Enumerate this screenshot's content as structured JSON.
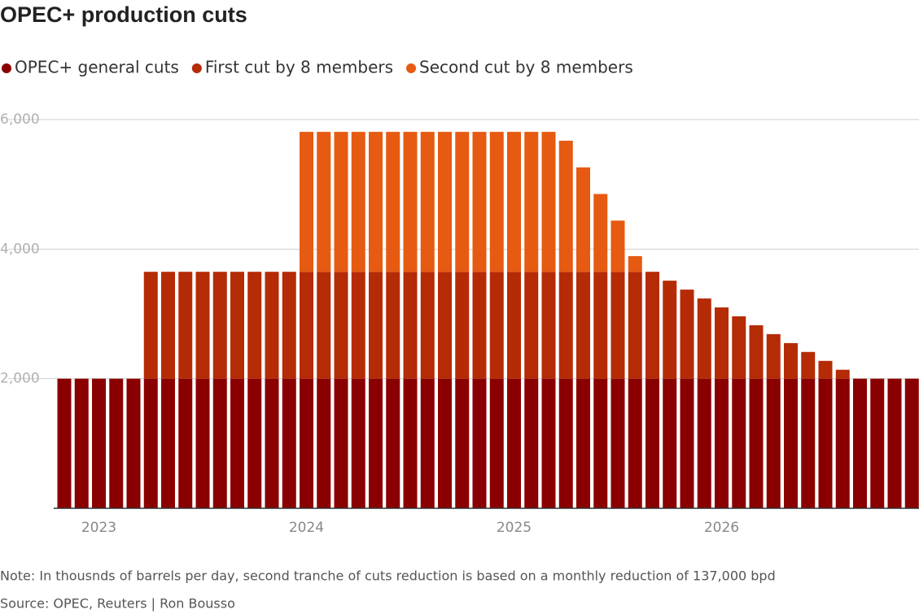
{
  "chart_data": {
    "type": "stacked_bar",
    "title": "OPEC+ production cuts",
    "categories": [
      null,
      null,
      "2023",
      null,
      null,
      null,
      null,
      null,
      null,
      null,
      null,
      null,
      null,
      null,
      "2024",
      null,
      null,
      null,
      null,
      null,
      null,
      null,
      null,
      null,
      null,
      null,
      "2025",
      null,
      null,
      null,
      null,
      null,
      null,
      null,
      null,
      null,
      null,
      null,
      "2026",
      null,
      null,
      null,
      null,
      null,
      null,
      null,
      null,
      null,
      null,
      null
    ],
    "series": [
      {
        "name": "OPEC+ general cuts",
        "color": "#8a0000",
        "values": [
          2000,
          2000,
          2000,
          2000,
          2000,
          2000,
          2000,
          2000,
          2000,
          2000,
          2000,
          2000,
          2000,
          2000,
          2000,
          2000,
          2000,
          2000,
          2000,
          2000,
          2000,
          2000,
          2000,
          2000,
          2000,
          2000,
          2000,
          2000,
          2000,
          2000,
          2000,
          2000,
          2000,
          2000,
          2000,
          2000,
          2000,
          2000,
          2000,
          2000,
          2000,
          2000,
          2000,
          2000,
          2000,
          2000,
          2000,
          2000,
          2000,
          2000
        ]
      },
      {
        "name": "First cut by 8 members",
        "color": "#b52b05",
        "values": [
          0,
          0,
          0,
          0,
          0,
          1650,
          1650,
          1650,
          1650,
          1650,
          1650,
          1650,
          1650,
          1650,
          1650,
          1650,
          1650,
          1650,
          1650,
          1650,
          1650,
          1650,
          1650,
          1650,
          1650,
          1650,
          1650,
          1650,
          1650,
          1650,
          1650,
          1650,
          1650,
          1650,
          1650,
          1513,
          1375,
          1238,
          1100,
          963,
          825,
          688,
          550,
          413,
          275,
          138,
          0,
          0,
          0,
          0
        ]
      },
      {
        "name": "Second cut by 8 members",
        "color": "#e65a12",
        "values": [
          0,
          0,
          0,
          0,
          0,
          0,
          0,
          0,
          0,
          0,
          0,
          0,
          0,
          0,
          2160,
          2160,
          2160,
          2160,
          2160,
          2160,
          2160,
          2160,
          2160,
          2160,
          2160,
          2160,
          2160,
          2160,
          2160,
          2023,
          1612,
          1201,
          790,
          242,
          0,
          0,
          0,
          0,
          0,
          0,
          0,
          0,
          0,
          0,
          0,
          0,
          0,
          0,
          0,
          0
        ]
      }
    ],
    "ylim": [
      0,
      6000
    ],
    "yticks": [
      {
        "value": 2000,
        "label": "2,000"
      },
      {
        "value": 4000,
        "label": "4,000"
      },
      {
        "value": 6000,
        "label": "6,000"
      }
    ],
    "grid": true,
    "note": "Note: In thousnds of barrels per day, second tranche of cuts reduction is based on a monthly reduction of 137,000 bpd",
    "source": "Source: OPEC, Reuters | Ron Bousso"
  }
}
